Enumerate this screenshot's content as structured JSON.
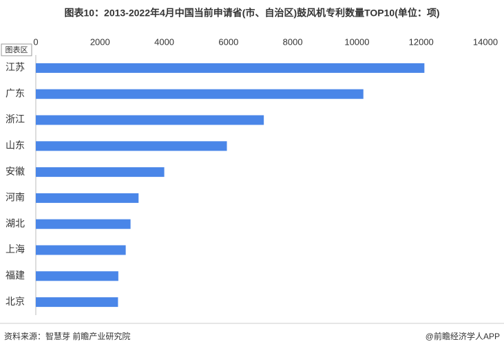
{
  "chart_data": {
    "type": "bar",
    "orientation": "horizontal",
    "title": "图表10：2013-2022年4月中国当前申请省(市、自治区)鼓风机专利数量TOP10(单位：项)",
    "badge": "图表区",
    "categories": [
      "江苏",
      "广东",
      "浙江",
      "山东",
      "安徽",
      "河南",
      "湖北",
      "上海",
      "福建",
      "北京"
    ],
    "values": [
      12100,
      10200,
      7100,
      5950,
      4000,
      3200,
      2950,
      2800,
      2570,
      2560
    ],
    "color": "#4a86e8",
    "xlim": [
      0,
      14000
    ],
    "xticks": [
      0,
      2000,
      4000,
      6000,
      8000,
      10000,
      12000,
      14000
    ],
    "source": "资料来源：智慧芽 前瞻产业研究院",
    "brand": "@前瞻经济学人APP"
  }
}
